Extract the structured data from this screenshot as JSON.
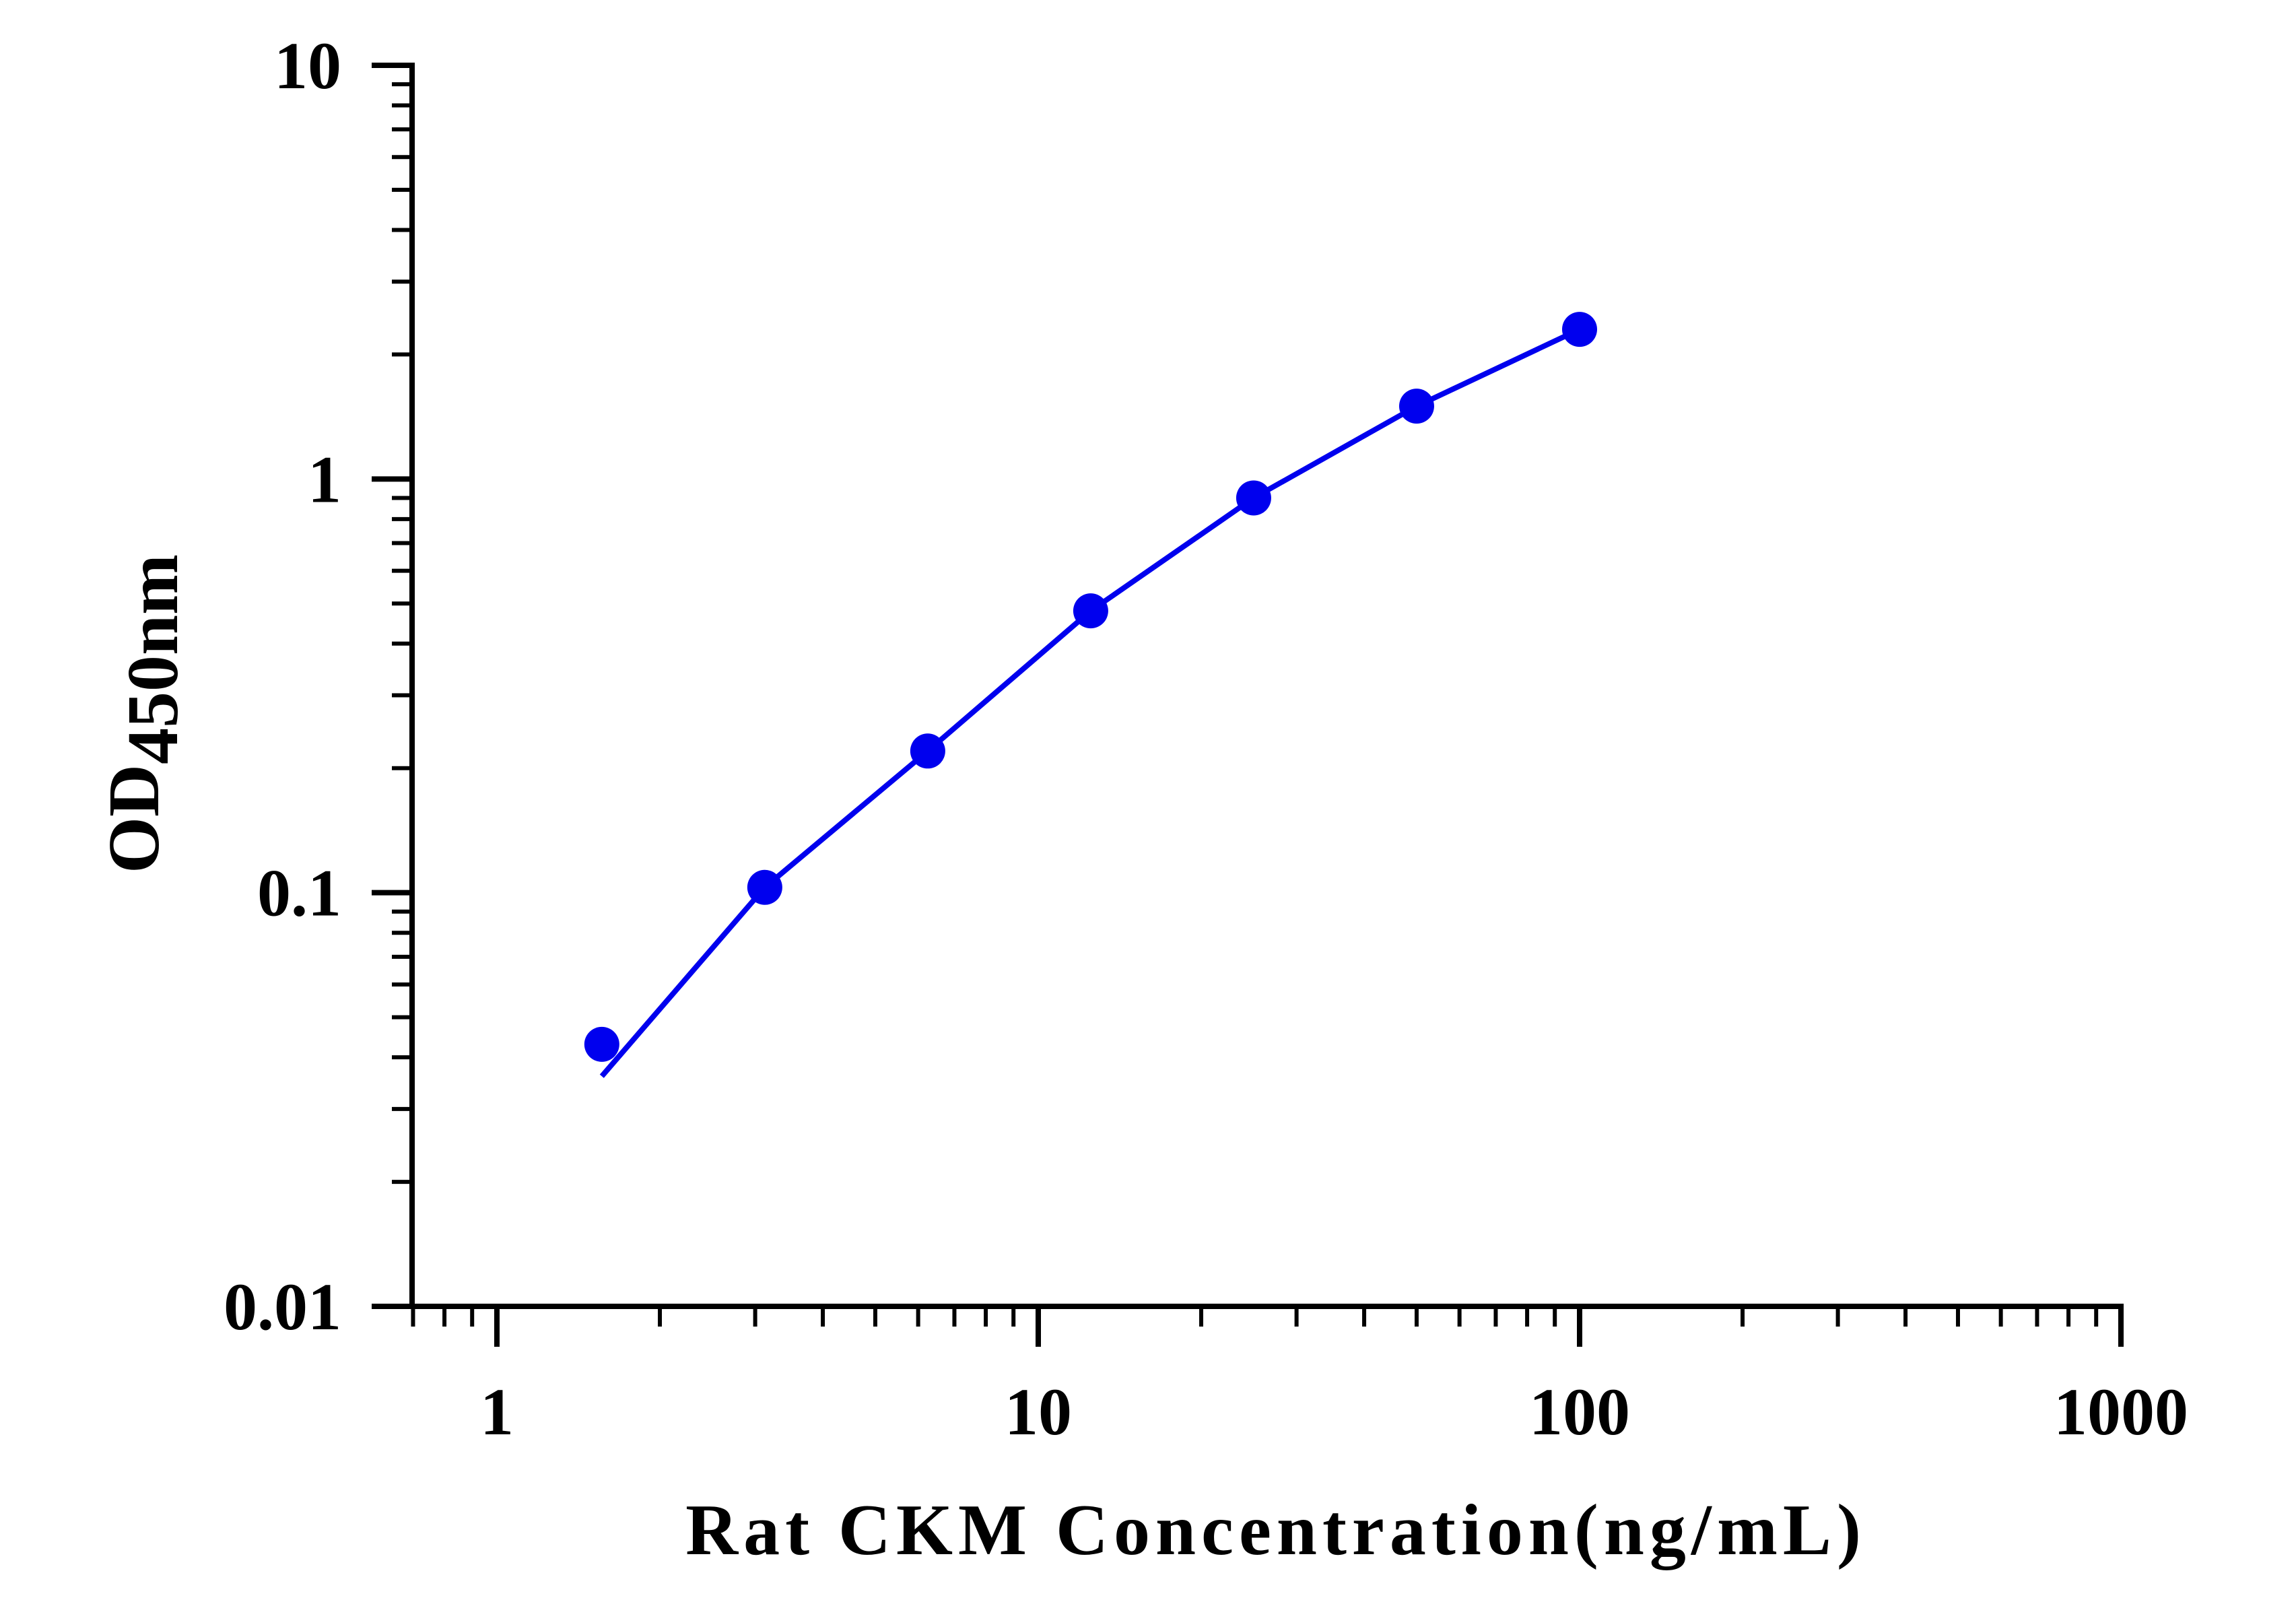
{
  "chart_data": {
    "type": "line",
    "title": "",
    "xlabel": "Rat CKM Concentration(ng/mL)",
    "ylabel": {
      "main": "OD",
      "subscript": "450nm"
    },
    "x_scale": "log",
    "y_scale": "log",
    "xlim": [
      1,
      1000
    ],
    "ylim": [
      0.01,
      10
    ],
    "x_ticks": [
      "1",
      "10",
      "100",
      "1000"
    ],
    "y_ticks": [
      "0.01",
      "0.1",
      "1",
      "10"
    ],
    "grid": false,
    "legend": "none",
    "series": [
      {
        "marker": "circle",
        "color": "#0000ee",
        "points": [
          {
            "x": 1.5625,
            "y": 0.043
          },
          {
            "x": 3.125,
            "y": 0.103
          },
          {
            "x": 6.25,
            "y": 0.22
          },
          {
            "x": 12.5,
            "y": 0.48
          },
          {
            "x": 25,
            "y": 0.9
          },
          {
            "x": 50,
            "y": 1.5
          },
          {
            "x": 100,
            "y": 2.3
          }
        ],
        "fit_curve": [
          {
            "x": 1.5625,
            "y": 0.036
          },
          {
            "x": 3.125,
            "y": 0.103
          },
          {
            "x": 6.25,
            "y": 0.22
          },
          {
            "x": 12.5,
            "y": 0.48
          },
          {
            "x": 25,
            "y": 0.9
          },
          {
            "x": 50,
            "y": 1.5
          },
          {
            "x": 100,
            "y": 2.3
          }
        ]
      }
    ]
  }
}
